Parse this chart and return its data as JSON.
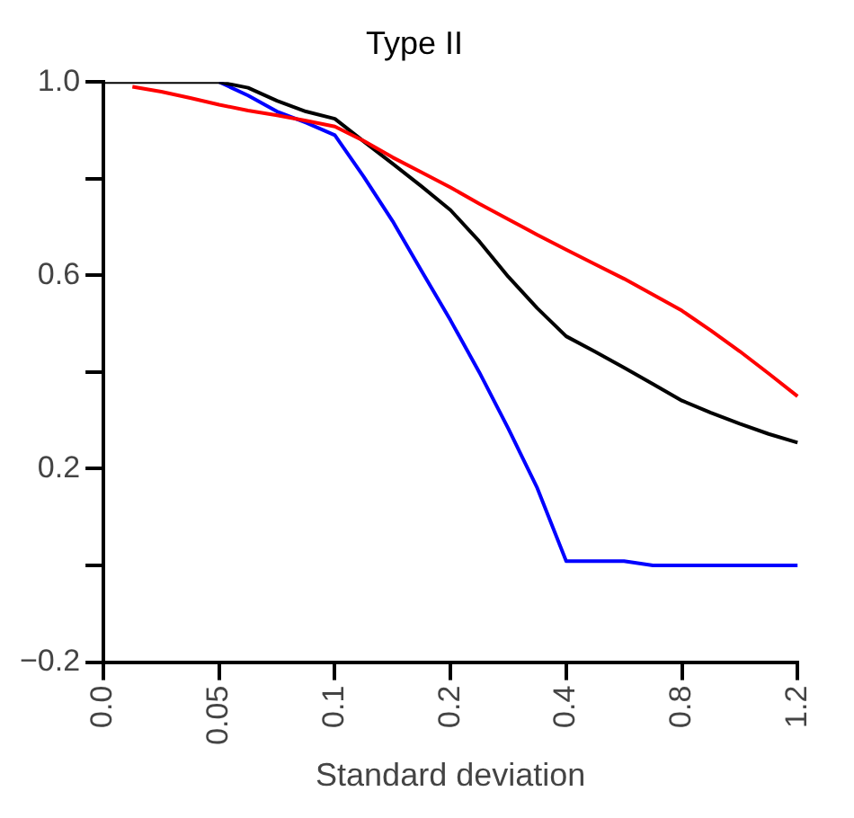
{
  "chart_data": {
    "type": "line",
    "title": "Type II",
    "xlabel": "Standard deviation",
    "categories": [
      "0.0",
      null,
      null,
      null,
      "0.05",
      null,
      null,
      null,
      "0.1",
      null,
      null,
      null,
      "0.2",
      null,
      null,
      null,
      "0.4",
      null,
      null,
      null,
      "0.8",
      null,
      null,
      null,
      "1.2"
    ],
    "ylim": [
      -0.2,
      1.0
    ],
    "yticks": [
      {
        "value": -0.2,
        "label": "−0.2"
      },
      {
        "value": 0,
        "label": null
      },
      {
        "value": 0.2,
        "label": "0.2"
      },
      {
        "value": 0.4,
        "label": null
      },
      {
        "value": 0.6,
        "label": "0.6"
      },
      {
        "value": 0.8,
        "label": null
      },
      {
        "value": 1.0,
        "label": "1.0"
      }
    ],
    "grid": false,
    "legend": false,
    "marker": "none",
    "line_style": "solid",
    "series": [
      {
        "color": "#ff0000",
        "values": [
          null,
          0.99,
          0.98,
          0.967,
          0.953,
          0.941,
          0.931,
          0.92,
          0.908,
          0.878,
          0.844,
          0.813,
          0.782,
          0.748,
          0.716,
          0.684,
          0.653,
          0.623,
          0.593,
          0.56,
          0.527,
          0.486,
          0.443,
          0.397,
          0.35
        ]
      },
      {
        "color": "#000000",
        "values": [
          1.0,
          1.0,
          1.0,
          1.0,
          1.0,
          0.988,
          0.961,
          0.939,
          0.924,
          0.877,
          0.831,
          0.784,
          0.735,
          0.67,
          0.597,
          0.532,
          0.474,
          0.442,
          0.409,
          0.375,
          0.341,
          0.316,
          0.293,
          0.272,
          0.254
        ]
      },
      {
        "color": "#0000ff",
        "values": [
          null,
          null,
          null,
          null,
          1.0,
          0.972,
          0.939,
          0.916,
          0.89,
          0.804,
          0.712,
          0.609,
          0.507,
          0.399,
          0.283,
          0.16,
          0.009,
          0.009,
          0.009,
          0.0,
          0.0,
          0.0,
          0.0,
          0.0,
          0.0
        ]
      }
    ]
  }
}
